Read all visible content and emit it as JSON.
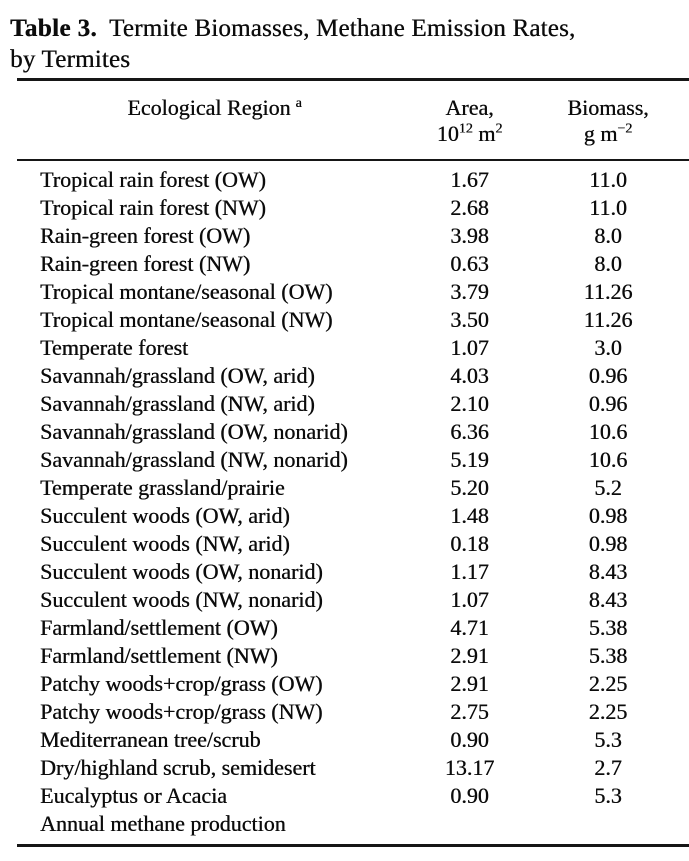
{
  "caption": {
    "label": "Table 3.",
    "line1": "Termite Biomasses, Methane Emission Rates,",
    "line2": "by Termites"
  },
  "table": {
    "header": {
      "region": "Ecological Region",
      "region_note": "a",
      "area": {
        "line1": "Area,",
        "base": "10",
        "base_exp": "12",
        "unit": "m",
        "unit_exp": "2"
      },
      "biomass": {
        "line1": "Biomass,",
        "unit": "g m",
        "exp": "−2"
      }
    },
    "rows": [
      {
        "region": "Tropical rain forest (OW)",
        "area": "1.67",
        "biomass": "11.0"
      },
      {
        "region": "Tropical rain forest (NW)",
        "area": "2.68",
        "biomass": "11.0"
      },
      {
        "region": "Rain-green forest (OW)",
        "area": "3.98",
        "biomass": "8.0"
      },
      {
        "region": "Rain-green forest (NW)",
        "area": "0.63",
        "biomass": "8.0"
      },
      {
        "region": "Tropical montane/seasonal (OW)",
        "area": "3.79",
        "biomass": "11.26"
      },
      {
        "region": "Tropical montane/seasonal (NW)",
        "area": "3.50",
        "biomass": "11.26"
      },
      {
        "region": "Temperate forest",
        "area": "1.07",
        "biomass": "3.0"
      },
      {
        "region": "Savannah/grassland (OW, arid)",
        "area": "4.03",
        "biomass": "0.96"
      },
      {
        "region": "Savannah/grassland (NW, arid)",
        "area": "2.10",
        "biomass": "0.96"
      },
      {
        "region": "Savannah/grassland (OW, nonarid)",
        "area": "6.36",
        "biomass": "10.6"
      },
      {
        "region": "Savannah/grassland (NW, nonarid)",
        "area": "5.19",
        "biomass": "10.6"
      },
      {
        "region": "Temperate grassland/prairie",
        "area": "5.20",
        "biomass": "5.2"
      },
      {
        "region": "Succulent woods (OW, arid)",
        "area": "1.48",
        "biomass": "0.98"
      },
      {
        "region": "Succulent woods (NW, arid)",
        "area": "0.18",
        "biomass": "0.98"
      },
      {
        "region": "Succulent woods (OW, nonarid)",
        "area": "1.17",
        "biomass": "8.43"
      },
      {
        "region": "Succulent woods (NW, nonarid)",
        "area": "1.07",
        "biomass": "8.43"
      },
      {
        "region": "Farmland/settlement (OW)",
        "area": "4.71",
        "biomass": "5.38"
      },
      {
        "region": "Farmland/settlement (NW)",
        "area": "2.91",
        "biomass": "5.38"
      },
      {
        "region": "Patchy woods+crop/grass (OW)",
        "area": "2.91",
        "biomass": "2.25"
      },
      {
        "region": "Patchy woods+crop/grass (NW)",
        "area": "2.75",
        "biomass": "2.25"
      },
      {
        "region": "Mediterranean tree/scrub",
        "area": "0.90",
        "biomass": "5.3"
      },
      {
        "region": "Dry/highland scrub, semidesert",
        "area": "13.17",
        "biomass": "2.7"
      },
      {
        "region": "Eucalyptus or Acacia",
        "area": "0.90",
        "biomass": "5.3"
      },
      {
        "region": "Annual methane production",
        "area": "",
        "biomass": ""
      }
    ]
  }
}
